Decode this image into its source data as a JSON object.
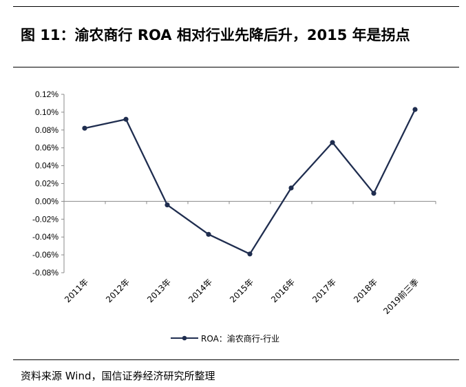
{
  "figure": {
    "title": "图 11：渝农商行 ROA 相对行业先降后升，2015 年是拐点",
    "source": "资料来源 Wind，国信证券经济研究所整理"
  },
  "colors": {
    "series": "#1f2d4f",
    "axis": "#888888",
    "text": "#000000"
  },
  "chart_data": {
    "type": "line",
    "title": "",
    "xlabel": "",
    "ylabel": "",
    "categories": [
      "2011年",
      "2012年",
      "2013年",
      "2014年",
      "2015年",
      "2016年",
      "2017年",
      "2018年",
      "2019前三季"
    ],
    "series": [
      {
        "name": "ROA：渝农商行-行业",
        "values": [
          0.082,
          0.092,
          -0.004,
          -0.037,
          -0.059,
          0.015,
          0.066,
          0.009,
          0.103
        ]
      }
    ],
    "ylim": [
      -0.08,
      0.12
    ],
    "y_ticks": [
      0.12,
      0.1,
      0.08,
      0.06,
      0.04,
      0.02,
      0.0,
      -0.02,
      -0.04,
      -0.06,
      -0.08
    ],
    "y_tick_labels": [
      "0.12%",
      "0.10%",
      "0.08%",
      "0.06%",
      "0.04%",
      "0.02%",
      "0.00%",
      "-0.02%",
      "-0.04%",
      "-0.06%",
      "-0.08%"
    ],
    "y_unit": "%",
    "grid": false,
    "legend_position": "bottom",
    "markers": true
  }
}
